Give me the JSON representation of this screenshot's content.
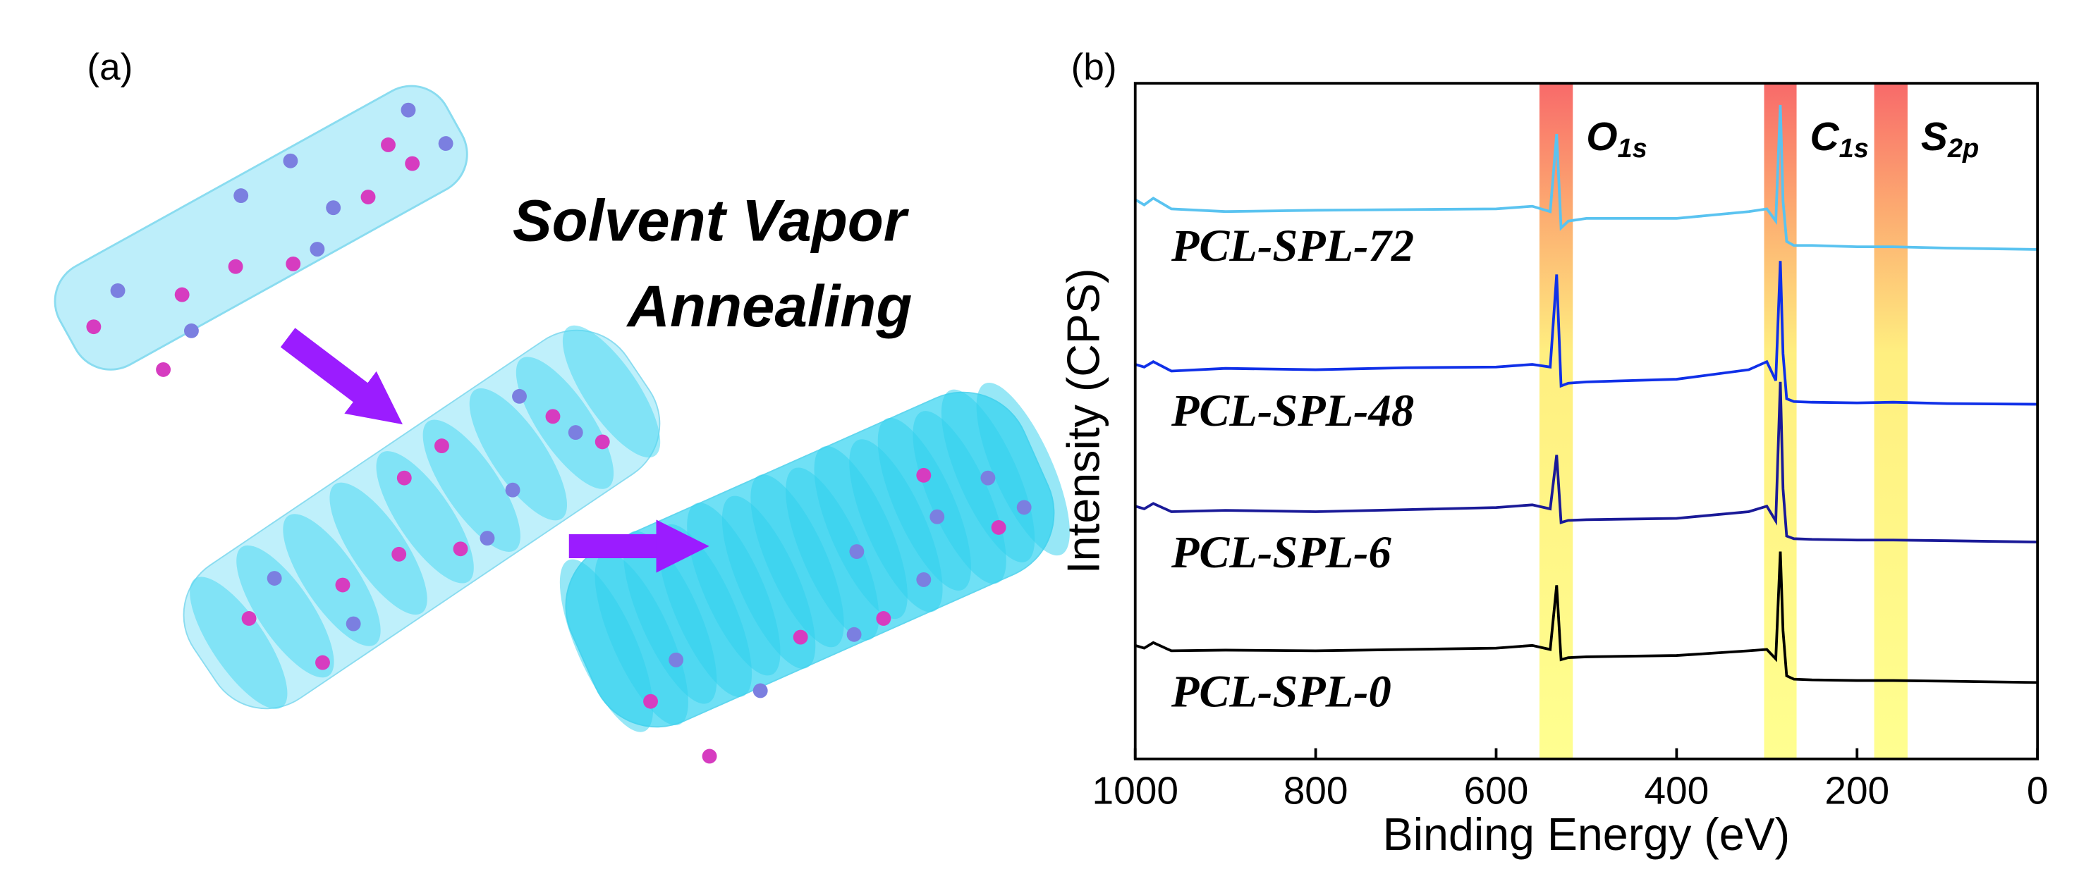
{
  "figure": {
    "panel_a": {
      "label": "(a)",
      "caption_lines": [
        "Solvent Vapor",
        "Annealing"
      ]
    }
  },
  "chart_data": {
    "type": "line",
    "panel_label": "(b)",
    "x_label": "Binding Energy (eV)",
    "y_label": "Intensity (CPS)",
    "xlim": [
      1000,
      0
    ],
    "xticks": [
      1000,
      800,
      600,
      400,
      200,
      0
    ],
    "ylim": [
      0,
      100
    ],
    "x": [
      1000,
      990,
      980,
      960,
      900,
      800,
      700,
      600,
      560,
      540,
      533,
      528,
      520,
      500,
      400,
      320,
      300,
      290,
      285,
      282,
      278,
      270,
      250,
      200,
      160,
      100,
      0
    ],
    "series": [
      {
        "name": "PCL-SPL-72",
        "color": "#5ac3f0",
        "values": [
          82.8,
          82,
          83,
          81.4,
          81,
          81.2,
          81.3,
          81.4,
          81.8,
          81,
          92.5,
          78.6,
          79.6,
          80,
          80,
          81,
          81.4,
          79.6,
          96.8,
          82.6,
          76.6,
          76,
          76,
          75.8,
          75.8,
          75.6,
          75.4
        ]
      },
      {
        "name": "PCL-SPL-48",
        "color": "#1030e8",
        "values": [
          58.4,
          58,
          58.8,
          57.4,
          57.8,
          57.6,
          57.9,
          58,
          58.4,
          58,
          71.7,
          55.2,
          55.6,
          55.8,
          56.2,
          57.6,
          58.8,
          56,
          73.7,
          60,
          53.3,
          52.9,
          52.8,
          52.7,
          52.8,
          52.6,
          52.5
        ]
      },
      {
        "name": "PCL-SPL-6",
        "color": "#1a1a98",
        "values": [
          37.4,
          37,
          37.8,
          36.6,
          36.8,
          36.6,
          36.9,
          37.2,
          37.6,
          37,
          45,
          35,
          35.3,
          35.4,
          35.6,
          36.6,
          37.4,
          35.2,
          55.8,
          40,
          33,
          32.6,
          32.5,
          32.4,
          32.4,
          32.3,
          32.1
        ]
      },
      {
        "name": "PCL-SPL-0",
        "color": "#000000",
        "values": [
          16.8,
          16.4,
          17.2,
          16,
          16.1,
          16,
          16.2,
          16.4,
          16.8,
          16.2,
          25.7,
          14.7,
          15,
          15.1,
          15.3,
          16,
          16.2,
          14.8,
          30.7,
          19,
          12.3,
          11.8,
          11.7,
          11.6,
          11.6,
          11.5,
          11.3
        ]
      }
    ],
    "bands": [
      {
        "label": "O",
        "subscript": "1s",
        "xlim": [
          552,
          515
        ]
      },
      {
        "label": "C",
        "subscript": "1s",
        "xlim": [
          303,
          267
        ]
      },
      {
        "label": "S",
        "subscript": "2p",
        "xlim": [
          181,
          144
        ]
      }
    ]
  }
}
